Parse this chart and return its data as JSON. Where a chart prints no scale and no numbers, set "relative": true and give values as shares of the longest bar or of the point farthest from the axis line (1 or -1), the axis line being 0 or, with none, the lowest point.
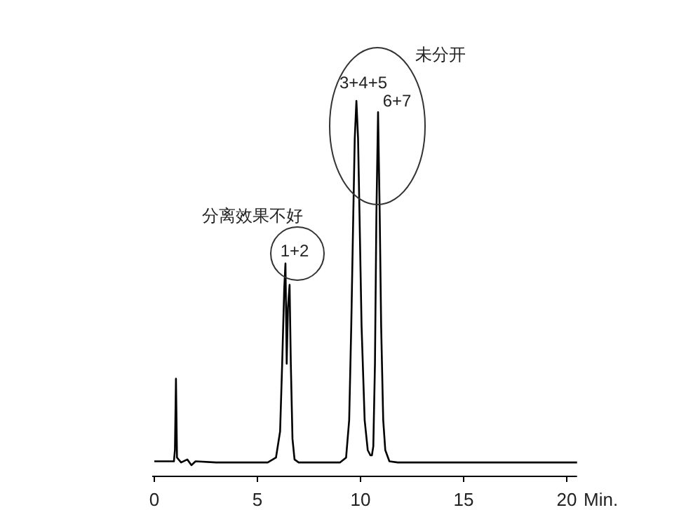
{
  "chart_data": {
    "type": "line",
    "relative": true,
    "xlabel": "Min.",
    "xlim": [
      -0.1,
      20.5
    ],
    "xticks": [
      0,
      5,
      10,
      15,
      20
    ],
    "color": "#000000",
    "x": [
      0,
      0.95,
      1.0,
      1.05,
      1.1,
      1.3,
      1.6,
      1.8,
      2.0,
      3.0,
      5.5,
      5.9,
      6.1,
      6.2,
      6.3,
      6.36,
      6.42,
      6.48,
      6.56,
      6.62,
      6.7,
      6.8,
      7.0,
      7.3,
      9.0,
      9.3,
      9.45,
      9.55,
      9.65,
      9.72,
      9.8,
      9.88,
      9.95,
      10.05,
      10.2,
      10.35,
      10.48,
      10.55,
      10.62,
      10.7,
      10.77,
      10.85,
      10.93,
      11.0,
      11.1,
      11.2,
      11.4,
      11.8,
      13,
      15,
      20.5
    ],
    "values": [
      0.04,
      0.04,
      0.07,
      0.26,
      0.05,
      0.037,
      0.045,
      0.03,
      0.04,
      0.037,
      0.037,
      0.05,
      0.12,
      0.3,
      0.5,
      0.567,
      0.3,
      0.45,
      0.51,
      0.3,
      0.1,
      0.045,
      0.037,
      0.037,
      0.037,
      0.05,
      0.15,
      0.4,
      0.7,
      0.9,
      1.0,
      0.9,
      0.7,
      0.4,
      0.15,
      0.07,
      0.056,
      0.056,
      0.08,
      0.3,
      0.7,
      0.97,
      0.7,
      0.4,
      0.15,
      0.07,
      0.04,
      0.037,
      0.037,
      0.037,
      0.037
    ],
    "annotations": [
      "分离效果不好",
      "1+2",
      "3+4+5",
      "6+7",
      "未分开"
    ]
  }
}
